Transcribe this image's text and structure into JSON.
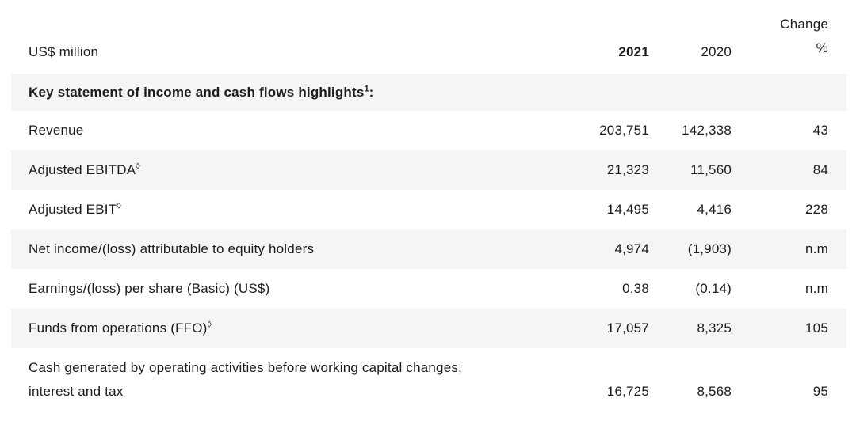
{
  "colors": {
    "background": "#ffffff",
    "stripe": "#f5f5f5",
    "text": "#1c1c1c"
  },
  "header": {
    "unit_label": "US$ million",
    "col_2021": "2021",
    "col_2020": "2020",
    "change_label": "Change",
    "change_unit": "%"
  },
  "section": {
    "title": "Key statement of income and cash flows highlights",
    "sup": "1",
    "suffix": ":"
  },
  "rows": [
    {
      "label": "Revenue",
      "v2021": "203,751",
      "v2020": "142,338",
      "change": "43"
    },
    {
      "label": "Adjusted EBITDA",
      "sup": "◊",
      "v2021": "21,323",
      "v2020": "11,560",
      "change": "84"
    },
    {
      "label": "Adjusted EBIT",
      "sup": "◊",
      "v2021": "14,495",
      "v2020": "4,416",
      "change": "228"
    },
    {
      "label": "Net income/(loss) attributable to equity holders",
      "v2021": "4,974",
      "v2020": "(1,903)",
      "change": "n.m"
    },
    {
      "label": "Earnings/(loss) per share (Basic) (US$)",
      "v2021": "0.38",
      "v2020": "(0.14)",
      "change": "n.m"
    },
    {
      "label": "Funds from operations (FFO)",
      "sup": "◊",
      "v2021": "17,057",
      "v2020": "8,325",
      "change": "105"
    },
    {
      "label_line1": "Cash generated by operating activities before working capital changes,",
      "label_line2": "interest and tax",
      "v2021": "16,725",
      "v2020": "8,568",
      "change": "95"
    }
  ]
}
